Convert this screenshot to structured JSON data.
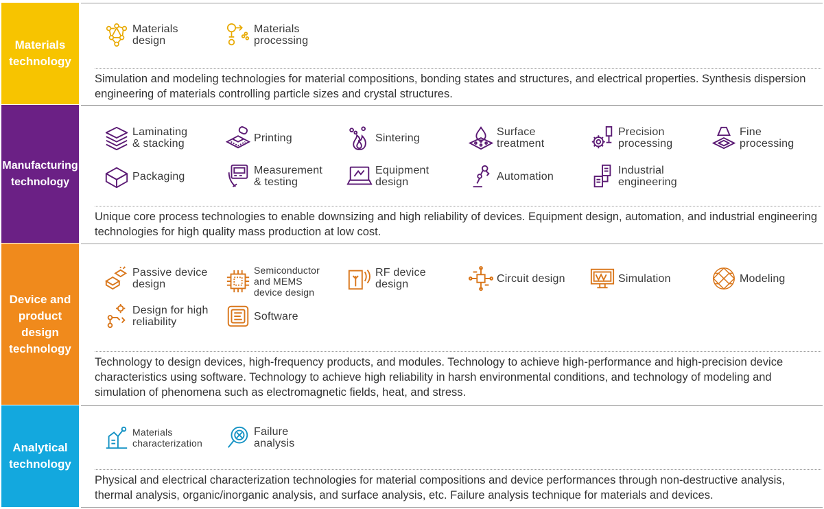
{
  "colors": {
    "materials": "#f7c400",
    "manufacturing": "#6b2085",
    "device": "#f08a1c",
    "analytical": "#13a8de"
  },
  "sections": [
    {
      "key": "materials",
      "title": "Materials\ntechnology",
      "items": [
        {
          "label": "Materials\ndesign",
          "icon": "molecule-icon"
        },
        {
          "label": "Materials\nprocessing",
          "icon": "flask-process-icon"
        }
      ],
      "description": "Simulation and modeling technologies for material compositions, bonding states and structures, and electrical properties. Synthesis dispersion engineering of materials controlling particle sizes and crystal structures."
    },
    {
      "key": "manufacturing",
      "title": "Manufacturing\ntechnology",
      "items": [
        {
          "label": "Laminating\n& stacking",
          "icon": "layers-icon"
        },
        {
          "label": "Printing",
          "icon": "printing-roller-icon"
        },
        {
          "label": "Sintering",
          "icon": "flame-icon"
        },
        {
          "label": "Surface\ntreatment",
          "icon": "droplet-surface-icon"
        },
        {
          "label": "Precision\nprocessing",
          "icon": "gear-probe-icon"
        },
        {
          "label": "Fine\nprocessing",
          "icon": "lamp-chip-icon"
        },
        {
          "label": "Packaging",
          "icon": "package-icon"
        },
        {
          "label": "Measurement\n& testing",
          "icon": "meter-icon"
        },
        {
          "label": "Equipment\ndesign",
          "icon": "laptop-design-icon"
        },
        {
          "label": "Automation",
          "icon": "robot-arm-icon"
        },
        {
          "label": "Industrial\nengineering",
          "icon": "factory-line-icon"
        }
      ],
      "description": "Unique core process technologies to enable downsizing and high reliability of devices. Equipment design, automation, and industrial engineering technologies for high quality mass production at low cost."
    },
    {
      "key": "device",
      "title": "Device and\nproduct\ndesign\ntechnology",
      "items": [
        {
          "label": "Passive device\ndesign",
          "icon": "component-icon"
        },
        {
          "label": "Semiconductor\nand MEMS\ndevice design",
          "icon": "chip-icon"
        },
        {
          "label": "RF device\ndesign",
          "icon": "antenna-icon"
        },
        {
          "label": "Circuit design",
          "icon": "circuit-icon"
        },
        {
          "label": "Simulation",
          "icon": "monitor-wave-icon"
        },
        {
          "label": "Modeling",
          "icon": "mesh-sphere-icon"
        },
        {
          "label": "Design for high\nreliability",
          "icon": "reliability-icon"
        },
        {
          "label": "Software",
          "icon": "software-icon"
        }
      ],
      "description": "Technology to design devices, high-frequency products, and modules. Technology to achieve high-performance and high-precision device characteristics using software. Technology to achieve high reliability in harsh environmental conditions, and technology of modeling and simulation of phenomena such as electromagnetic fields, heat, and stress."
    },
    {
      "key": "analytical",
      "title": "Analytical\ntechnology",
      "items": [
        {
          "label": "Materials\ncharacterization",
          "icon": "microscope-icon"
        },
        {
          "label": "Failure\nanalysis",
          "icon": "magnifier-icon"
        }
      ],
      "description": "Physical and electrical characterization technologies for material compositions and device performances through non-destructive analysis, thermal analysis, organic/inorganic analysis, and surface analysis, etc. Failure analysis technique for materials and devices."
    }
  ]
}
